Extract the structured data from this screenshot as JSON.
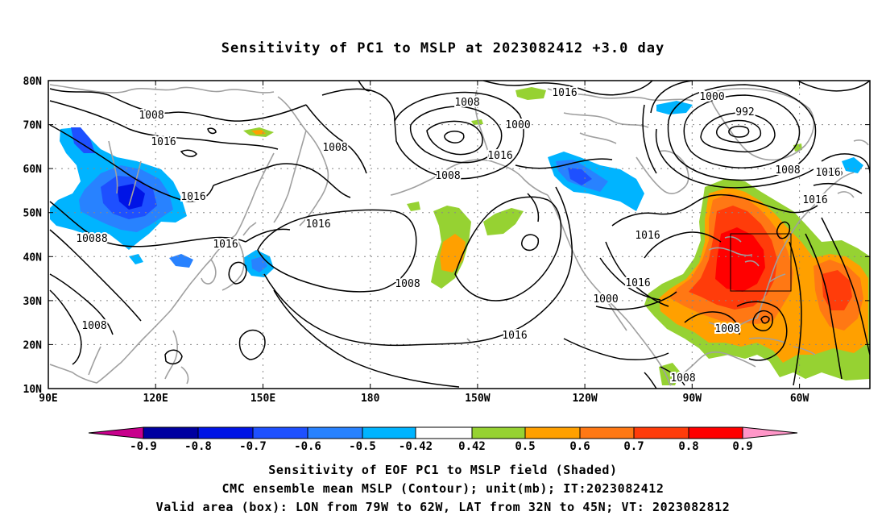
{
  "title": "Sensitivity of PC1 to MSLP at 2023082412 +3.0 day",
  "lat_labels": [
    "80N",
    "70N",
    "60N",
    "50N",
    "40N",
    "30N",
    "20N",
    "10N"
  ],
  "lon_labels": [
    "90E",
    "120E",
    "150E",
    "180",
    "150W",
    "120W",
    "90W",
    "60W"
  ],
  "colorbar": {
    "labels": [
      "-0.9",
      "-0.8",
      "-0.7",
      "-0.6",
      "-0.5",
      "-0.42",
      "0.42",
      "0.5",
      "0.6",
      "0.7",
      "0.8",
      "0.9"
    ],
    "colors": [
      "#c8008c",
      "#0000a0",
      "#0014e6",
      "#1e50ff",
      "#2882ff",
      "#00b4ff",
      "#ffffff",
      "#96d232",
      "#ffa000",
      "#ff7814",
      "#ff3c0a",
      "#ff0000",
      "#ff96c8"
    ]
  },
  "isobar_labels": [
    "1008",
    "1016",
    "1016",
    "1008",
    "1016",
    "1008",
    "1008",
    "1008",
    "1000",
    "1016",
    "1016",
    "1016",
    "1008",
    "1016",
    "1000",
    "1016",
    "1008",
    "1016",
    "1000",
    "992",
    "1008",
    "1016",
    "1016",
    "1016",
    "1016",
    "1008",
    "1008",
    "1008"
  ],
  "validation_box": {
    "lon_west": "79W",
    "lon_east": "62W",
    "lat_south": "32N",
    "lat_north": "45N"
  },
  "captions": {
    "line1": "Sensitivity of EOF PC1 to MSLP field (Shaded)",
    "line2": "CMC ensemble mean MSLP (Contour); unit(mb); IT:2023082412",
    "line3": "Valid area (box): LON from 79W to 62W, LAT from 32N to 45N; VT: 2023082812"
  }
}
